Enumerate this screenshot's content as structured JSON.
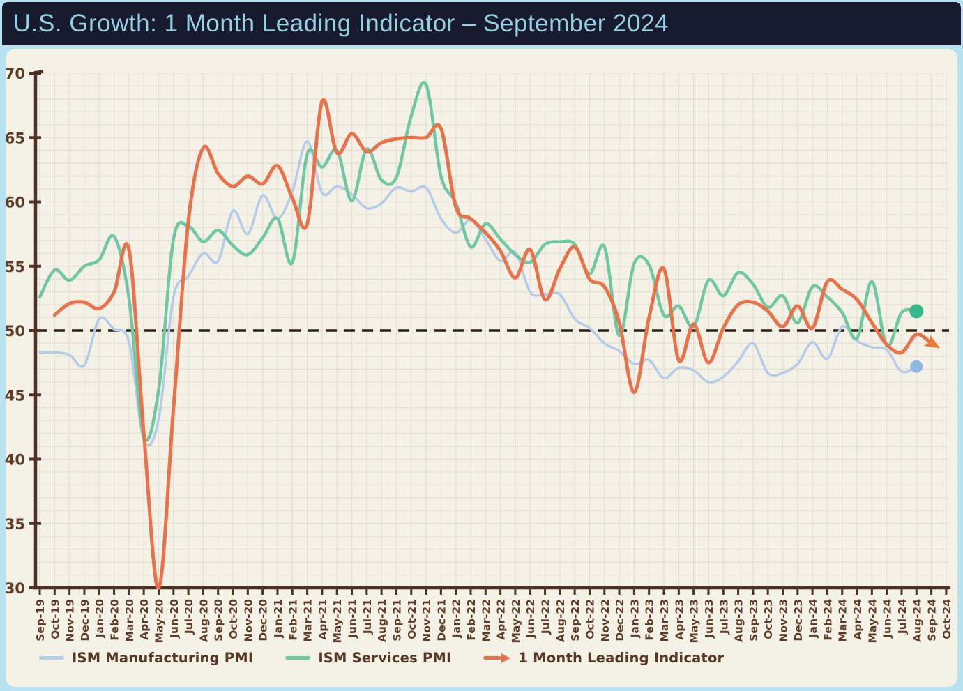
{
  "title_bar": {
    "title": "U.S. Growth: 1 Month Leading Indicator – September 2024"
  },
  "chart_data": {
    "type": "line",
    "title": "U.S. Growth: 1 Month Leading Indicator – September 2024",
    "xlabel": "",
    "ylabel": "",
    "ylim": [
      30,
      70
    ],
    "ytick_step": 5,
    "reference_line": 50,
    "grid": true,
    "legend_position": "bottom",
    "x": [
      "Sep-19",
      "Oct-19",
      "Nov-19",
      "Dec-19",
      "Jan-20",
      "Feb-20",
      "Mar-20",
      "Apr-20",
      "May-20",
      "Jun-20",
      "Jul-20",
      "Aug-20",
      "Sep-20",
      "Oct-20",
      "Nov-20",
      "Dec-20",
      "Jan-21",
      "Feb-21",
      "Mar-21",
      "Apr-21",
      "May-21",
      "Jun-21",
      "Jul-21",
      "Aug-21",
      "Sep-21",
      "Oct-21",
      "Nov-21",
      "Dec-21",
      "Jan-22",
      "Feb-22",
      "Mar-22",
      "Apr-22",
      "May-22",
      "Jun-22",
      "Jul-22",
      "Aug-22",
      "Sep-22",
      "Oct-22",
      "Nov-22",
      "Dec-22",
      "Jan-23",
      "Feb-23",
      "Mar-23",
      "Apr-23",
      "May-23",
      "Jun-23",
      "Jul-23",
      "Aug-23",
      "Sep-23",
      "Oct-23",
      "Nov-23",
      "Dec-23",
      "Jan-24",
      "Feb-24",
      "Mar-24",
      "Apr-24",
      "May-24",
      "Jun-24",
      "Jul-24",
      "Aug-24",
      "Sep-24",
      "Oct-24"
    ],
    "series": [
      {
        "name": "ISM Manufacturing PMI",
        "color": "#b5cce9",
        "marker_color": "#8cb8e1",
        "end_marker": "dot",
        "line_width": 3.5,
        "values": [
          48.3,
          48.3,
          48.1,
          47.3,
          50.9,
          50.1,
          49.1,
          41.5,
          43.1,
          52.6,
          54.2,
          56.0,
          55.4,
          59.3,
          57.5,
          60.5,
          58.7,
          60.8,
          64.7,
          60.7,
          61.2,
          60.6,
          59.5,
          59.9,
          61.1,
          60.8,
          61.1,
          58.7,
          57.6,
          58.6,
          57.1,
          55.4,
          56.1,
          53.0,
          52.8,
          52.8,
          50.9,
          50.2,
          49.0,
          48.4,
          47.4,
          47.7,
          46.3,
          47.1,
          46.9,
          46.0,
          46.4,
          47.6,
          49.0,
          46.7,
          46.7,
          47.4,
          49.1,
          47.8,
          50.3,
          49.2,
          48.7,
          48.5,
          46.8,
          47.2,
          null,
          null
        ]
      },
      {
        "name": "ISM Services PMI",
        "color": "#6fc7a3",
        "marker_color": "#36b98a",
        "end_marker": "dot",
        "line_width": 4.5,
        "values": [
          52.6,
          54.7,
          53.9,
          55.0,
          55.5,
          57.3,
          52.5,
          41.8,
          45.4,
          57.1,
          58.1,
          56.9,
          57.8,
          56.6,
          55.9,
          57.2,
          58.7,
          55.3,
          63.7,
          62.7,
          64.0,
          60.1,
          64.1,
          61.7,
          61.9,
          66.7,
          69.1,
          62.0,
          59.9,
          56.5,
          58.3,
          57.1,
          55.9,
          55.3,
          56.7,
          56.9,
          56.7,
          54.4,
          56.5,
          49.6,
          55.2,
          55.1,
          51.2,
          51.9,
          50.3,
          53.9,
          52.7,
          54.5,
          53.6,
          51.8,
          52.7,
          50.6,
          53.4,
          52.6,
          51.4,
          49.4,
          53.8,
          48.8,
          51.4,
          51.5,
          null,
          null
        ]
      },
      {
        "name": "1 Month Leading Indicator",
        "color": "#e9724b",
        "marker_color": "#ef7a35",
        "end_marker": "arrow",
        "line_width": 5,
        "values": [
          null,
          51.2,
          52.1,
          52.2,
          51.7,
          53.0,
          56.3,
          42.0,
          30.0,
          44.0,
          58.5,
          64.2,
          62.2,
          61.2,
          62.0,
          61.4,
          62.8,
          60.3,
          58.3,
          67.8,
          63.8,
          65.3,
          63.9,
          64.6,
          64.9,
          65.0,
          65.0,
          65.7,
          59.6,
          58.7,
          57.6,
          56.2,
          54.1,
          56.3,
          52.4,
          54.8,
          56.5,
          54.0,
          53.4,
          50.6,
          45.2,
          51.0,
          54.8,
          47.7,
          50.5,
          47.5,
          50.2,
          52.0,
          52.2,
          51.5,
          50.3,
          51.9,
          50.2,
          53.8,
          53.2,
          52.4,
          50.6,
          48.9,
          48.3,
          49.7,
          49.0,
          null
        ]
      }
    ]
  },
  "colors": {
    "background": "#b7e2f0",
    "titlebar_bg": "#181a2d",
    "title_text": "#96d1e3",
    "panel_bg": "#f4f1e6",
    "grid": "#e6ded2",
    "axis": "#4e3025",
    "tick_label": "#5e3c28",
    "reference_line": "#2f2015",
    "legend_text": "#573827"
  }
}
